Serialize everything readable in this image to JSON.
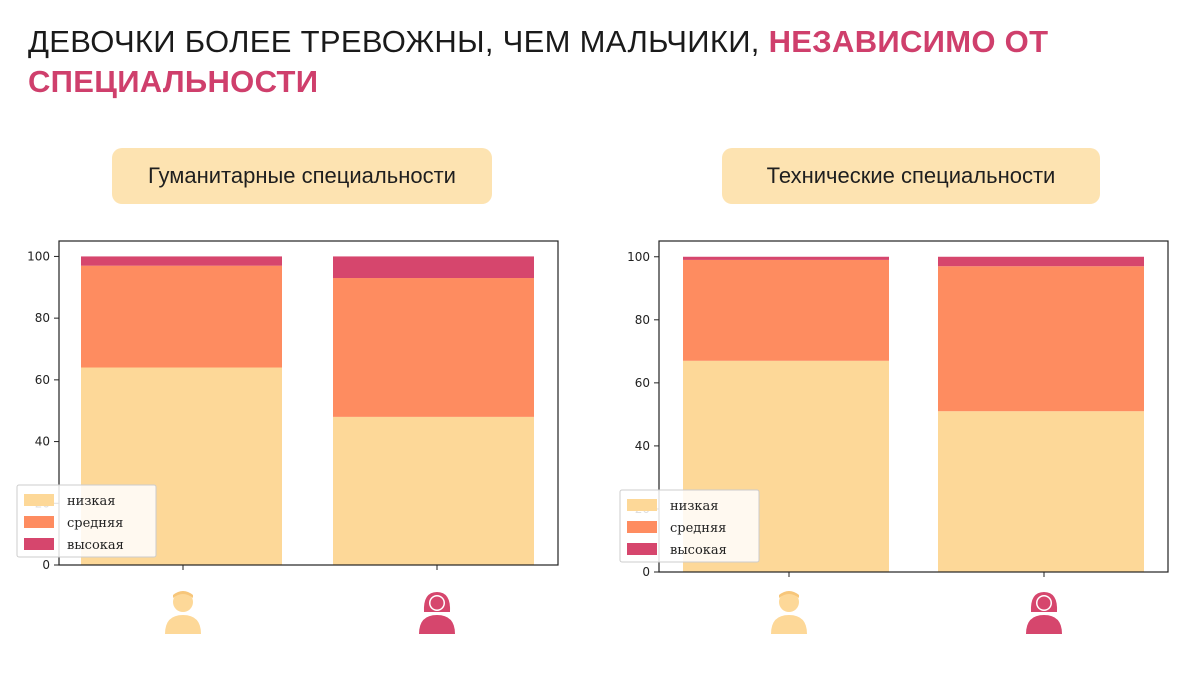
{
  "title": {
    "plain": "ДЕВОЧКИ БОЛЕЕ ТРЕВОЖНЫ, ЧЕМ МАЛЬЧИКИ, ",
    "accent": "НЕЗАВИСИМО ОТ СПЕЦИАЛЬНОСТИ"
  },
  "colors": {
    "low": "#fdd898",
    "medium": "#fe8c60",
    "high": "#d6466d",
    "accent": "#cf3f6c",
    "pill": "#fde3b1",
    "male_icon": "#fdd898",
    "female_icon": "#d6466d"
  },
  "chart_data": [
    {
      "type": "bar",
      "subtitle": "Гуманитарные специальности",
      "categories": [
        "male-icon",
        "female-icon"
      ],
      "series": [
        {
          "name": "низкая",
          "values": [
            64,
            48
          ]
        },
        {
          "name": "средняя",
          "values": [
            33,
            45
          ]
        },
        {
          "name": "высокая",
          "values": [
            3,
            7
          ]
        }
      ],
      "stacked": true,
      "ylim": [
        0,
        105
      ],
      "yticks": [
        0,
        20,
        40,
        60,
        80,
        100
      ],
      "legend_position": "lower-left",
      "grid": false
    },
    {
      "type": "bar",
      "subtitle": "Технические специальности",
      "categories": [
        "male-icon",
        "female-icon"
      ],
      "series": [
        {
          "name": "низкая",
          "values": [
            67,
            51
          ]
        },
        {
          "name": "средняя",
          "values": [
            32,
            46
          ]
        },
        {
          "name": "высокая",
          "values": [
            1,
            3
          ]
        }
      ],
      "stacked": true,
      "ylim": [
        0,
        105
      ],
      "yticks": [
        0,
        20,
        40,
        60,
        80,
        100
      ],
      "legend_position": "lower-left",
      "grid": false
    }
  ]
}
